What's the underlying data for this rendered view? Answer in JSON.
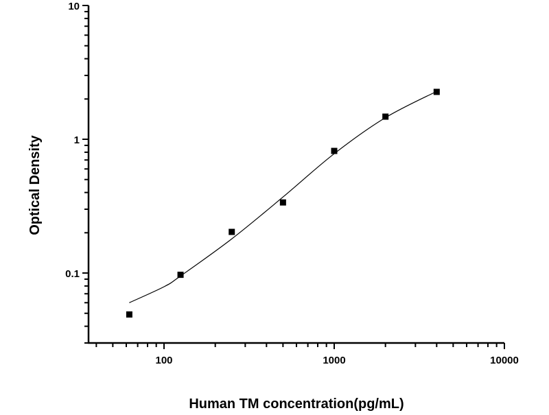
{
  "chart_data": {
    "type": "scatter",
    "title": "",
    "xlabel": "Human TM concentration(pg/mL)",
    "ylabel": "Optical Density",
    "xscale": "log",
    "yscale": "log",
    "xlim": [
      36,
      10000
    ],
    "ylim": [
      0.03,
      10
    ],
    "x_ticks": [
      100,
      1000,
      10000
    ],
    "x_tick_labels": [
      "100",
      "1000",
      "10000"
    ],
    "y_ticks": [
      0.1,
      1,
      10
    ],
    "y_tick_labels": [
      "0.1",
      "1",
      "10"
    ],
    "grid": false,
    "points": {
      "x": [
        62.5,
        125,
        250,
        500,
        1000,
        2000,
        4000
      ],
      "y": [
        0.049,
        0.097,
        0.203,
        0.337,
        0.818,
        1.476,
        2.26
      ]
    },
    "fit_curve": {
      "x": [
        62.5,
        100,
        125,
        250,
        500,
        1000,
        2000,
        4000
      ],
      "y": [
        0.06,
        0.079,
        0.095,
        0.18,
        0.37,
        0.78,
        1.45,
        2.28
      ]
    }
  }
}
